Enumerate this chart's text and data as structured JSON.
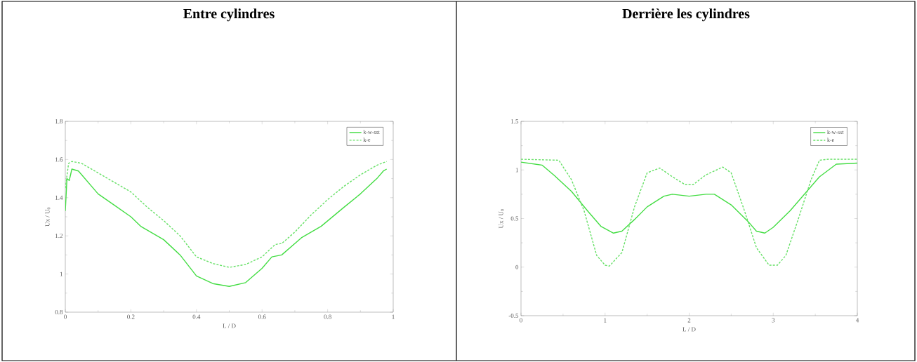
{
  "chart_data": [
    {
      "type": "line",
      "title": "Entre cylindres",
      "xlabel": "L / D",
      "ylabel": "Ux / U$_{0}$",
      "xlim": [
        0,
        1
      ],
      "ylim": [
        0.8,
        1.8
      ],
      "xticks": [
        0,
        0.2,
        0.4,
        0.6,
        0.8,
        1
      ],
      "yticks": [
        0.8,
        1,
        1.2,
        1.4,
        1.6,
        1.8
      ],
      "legend": "top right",
      "grid": false,
      "marker": "none",
      "series": [
        {
          "name": "k-w-sst",
          "color": "#44dd44",
          "line_style": "solid",
          "x": [
            0,
            0.005,
            0.012,
            0.02,
            0.04,
            0.1,
            0.15,
            0.2,
            0.23,
            0.3,
            0.35,
            0.4,
            0.45,
            0.5,
            0.55,
            0.6,
            0.63,
            0.66,
            0.72,
            0.78,
            0.85,
            0.9,
            0.95,
            0.97,
            0.98
          ],
          "values": [
            1.33,
            1.5,
            1.49,
            1.55,
            1.54,
            1.42,
            1.36,
            1.3,
            1.25,
            1.18,
            1.1,
            0.99,
            0.95,
            0.935,
            0.955,
            1.03,
            1.09,
            1.1,
            1.19,
            1.25,
            1.35,
            1.42,
            1.5,
            1.54,
            1.55
          ]
        },
        {
          "name": "k-e",
          "color": "#66e066",
          "line_style": "dashed",
          "x": [
            0,
            0.01,
            0.02,
            0.05,
            0.1,
            0.2,
            0.25,
            0.3,
            0.35,
            0.4,
            0.45,
            0.5,
            0.55,
            0.6,
            0.64,
            0.66,
            0.7,
            0.75,
            0.8,
            0.85,
            0.9,
            0.95,
            0.98
          ],
          "values": [
            1.45,
            1.58,
            1.59,
            1.58,
            1.53,
            1.43,
            1.35,
            1.28,
            1.2,
            1.09,
            1.055,
            1.035,
            1.05,
            1.09,
            1.155,
            1.16,
            1.22,
            1.31,
            1.39,
            1.46,
            1.52,
            1.57,
            1.59
          ]
        }
      ]
    },
    {
      "type": "line",
      "title": "Derrière les cylindres",
      "xlabel": "L / D",
      "ylabel": "Ux / U$_{0}$",
      "xlim": [
        0,
        4
      ],
      "ylim": [
        -0.5,
        1.5
      ],
      "xticks": [
        0,
        1,
        2,
        3,
        4
      ],
      "yticks": [
        -0.5,
        0,
        0.5,
        1,
        1.5
      ],
      "legend": "top right",
      "grid": false,
      "marker": "none",
      "series": [
        {
          "name": "k-w-sst",
          "color": "#44dd44",
          "line_style": "solid",
          "x": [
            0,
            0.25,
            0.4,
            0.6,
            0.8,
            0.95,
            1.1,
            1.2,
            1.35,
            1.5,
            1.7,
            1.8,
            2,
            2.2,
            2.3,
            2.5,
            2.7,
            2.8,
            2.9,
            3,
            3.2,
            3.4,
            3.55,
            3.75,
            4
          ],
          "values": [
            1.08,
            1.05,
            0.94,
            0.78,
            0.57,
            0.42,
            0.35,
            0.37,
            0.49,
            0.62,
            0.73,
            0.75,
            0.73,
            0.75,
            0.75,
            0.64,
            0.47,
            0.37,
            0.35,
            0.41,
            0.58,
            0.78,
            0.93,
            1.06,
            1.07
          ]
        },
        {
          "name": "k-e",
          "color": "#66e066",
          "line_style": "dashed",
          "x": [
            0,
            0.45,
            0.6,
            0.75,
            0.9,
            1,
            1.05,
            1.2,
            1.35,
            1.5,
            1.65,
            1.8,
            1.95,
            2.05,
            2.2,
            2.4,
            2.5,
            2.65,
            2.8,
            2.95,
            3.05,
            3.15,
            3.3,
            3.45,
            3.55,
            3.65,
            4
          ],
          "values": [
            1.11,
            1.1,
            0.9,
            0.58,
            0.12,
            0.02,
            0.01,
            0.15,
            0.62,
            0.97,
            1.02,
            0.93,
            0.85,
            0.85,
            0.95,
            1.03,
            0.97,
            0.6,
            0.2,
            0.02,
            0.02,
            0.12,
            0.5,
            0.9,
            1.1,
            1.11,
            1.11
          ]
        }
      ]
    }
  ]
}
